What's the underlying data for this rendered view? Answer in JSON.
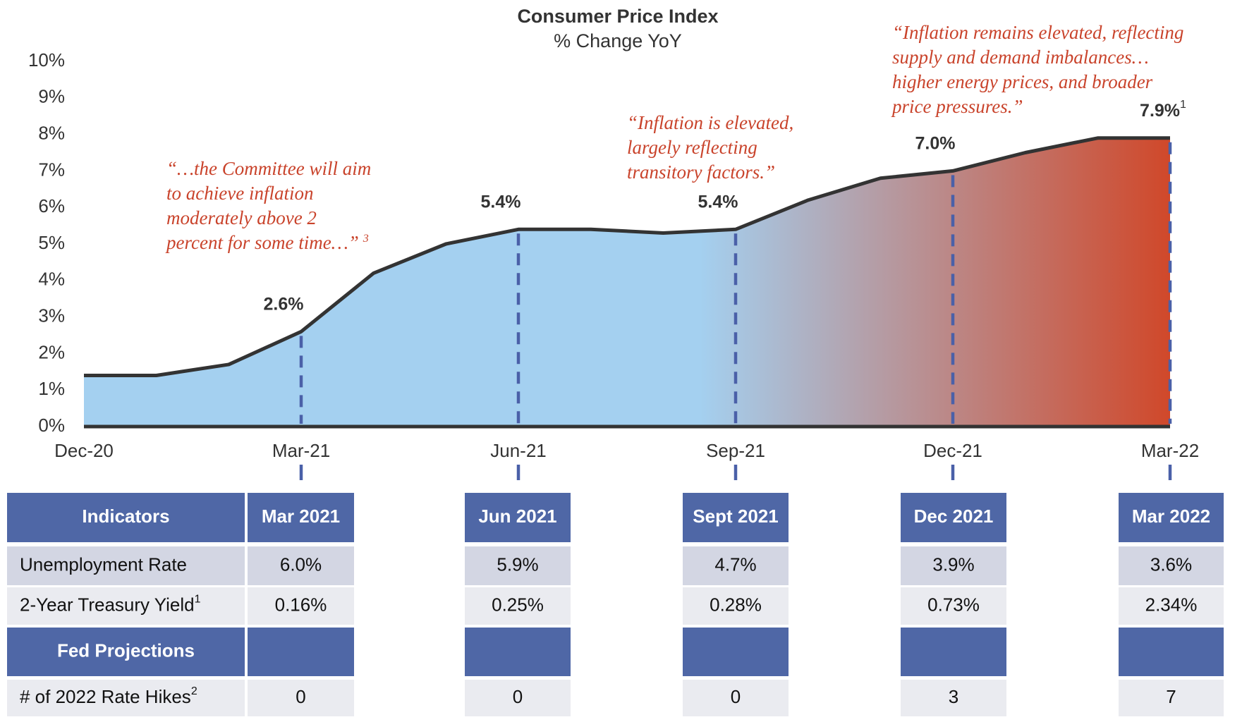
{
  "chart_data": {
    "type": "area",
    "title": "Consumer Price Index",
    "subtitle": "% Change YoY",
    "categories": [
      "Dec-20",
      null,
      null,
      "Mar-21",
      null,
      null,
      "Jun-21",
      null,
      null,
      "Sep-21",
      null,
      null,
      "Dec-21",
      null,
      null,
      "Mar-22"
    ],
    "values": [
      1.4,
      1.4,
      1.7,
      2.6,
      4.2,
      5.0,
      5.4,
      5.4,
      5.3,
      5.4,
      6.2,
      6.8,
      7.0,
      7.5,
      7.9,
      7.9
    ],
    "value_labels": [
      null,
      null,
      null,
      "2.6%",
      null,
      null,
      "5.4%",
      null,
      null,
      "5.4%",
      null,
      null,
      "7.0%",
      null,
      null,
      "7.9%"
    ],
    "value_label_notes": [
      null,
      null,
      null,
      null,
      null,
      null,
      null,
      null,
      null,
      null,
      null,
      null,
      null,
      null,
      null,
      "1"
    ],
    "ylim": [
      0,
      10
    ],
    "yticks": [
      {
        "value": 0,
        "label": "0%"
      },
      {
        "value": 1,
        "label": "1%"
      },
      {
        "value": 2,
        "label": "2%"
      },
      {
        "value": 3,
        "label": "3%"
      },
      {
        "value": 4,
        "label": "4%"
      },
      {
        "value": 5,
        "label": "5%"
      },
      {
        "value": 6,
        "label": "6%"
      },
      {
        "value": 7,
        "label": "7%"
      },
      {
        "value": 8,
        "label": "8%"
      },
      {
        "value": 9,
        "label": "9%"
      },
      {
        "value": 10,
        "label": "10%"
      }
    ],
    "line_color": "#333333",
    "fill_colors": [
      "#a4d0f0",
      "#d0482a"
    ],
    "marker_color": "#4a60a8",
    "annotation_color": "#c9432b",
    "annotations": [
      {
        "lines": [
          "“…the Committee will aim",
          "to achieve inflation",
          "moderately above 2",
          "percent for some time…”"
        ],
        "note": "3"
      },
      {
        "lines": [
          "“Inflation is elevated,",
          "largely reflecting",
          "transitory factors.”"
        ]
      },
      {
        "lines": [
          "“Inflation remains elevated, reflecting",
          "supply and demand imbalances…",
          "higher energy prices, and broader",
          "price pressures.”"
        ]
      }
    ]
  },
  "table": {
    "header": [
      "Indicators",
      "Mar 2021",
      "Jun 2021",
      "Sept 2021",
      "Dec 2021",
      "Mar 2022"
    ],
    "rows": [
      {
        "label": "Unemployment Rate",
        "cells": [
          "6.0%",
          "5.9%",
          "4.7%",
          "3.9%",
          "3.6%"
        ]
      },
      {
        "label": "2-Year Treasury Yield",
        "note": "1",
        "cells": [
          "0.16%",
          "0.25%",
          "0.28%",
          "0.73%",
          "2.34%"
        ]
      },
      {
        "label": "Fed Projections",
        "section": true
      },
      {
        "label": "# of 2022 Rate Hikes",
        "note": "2",
        "cells": [
          "0",
          "0",
          "0",
          "3",
          "7"
        ]
      }
    ]
  }
}
